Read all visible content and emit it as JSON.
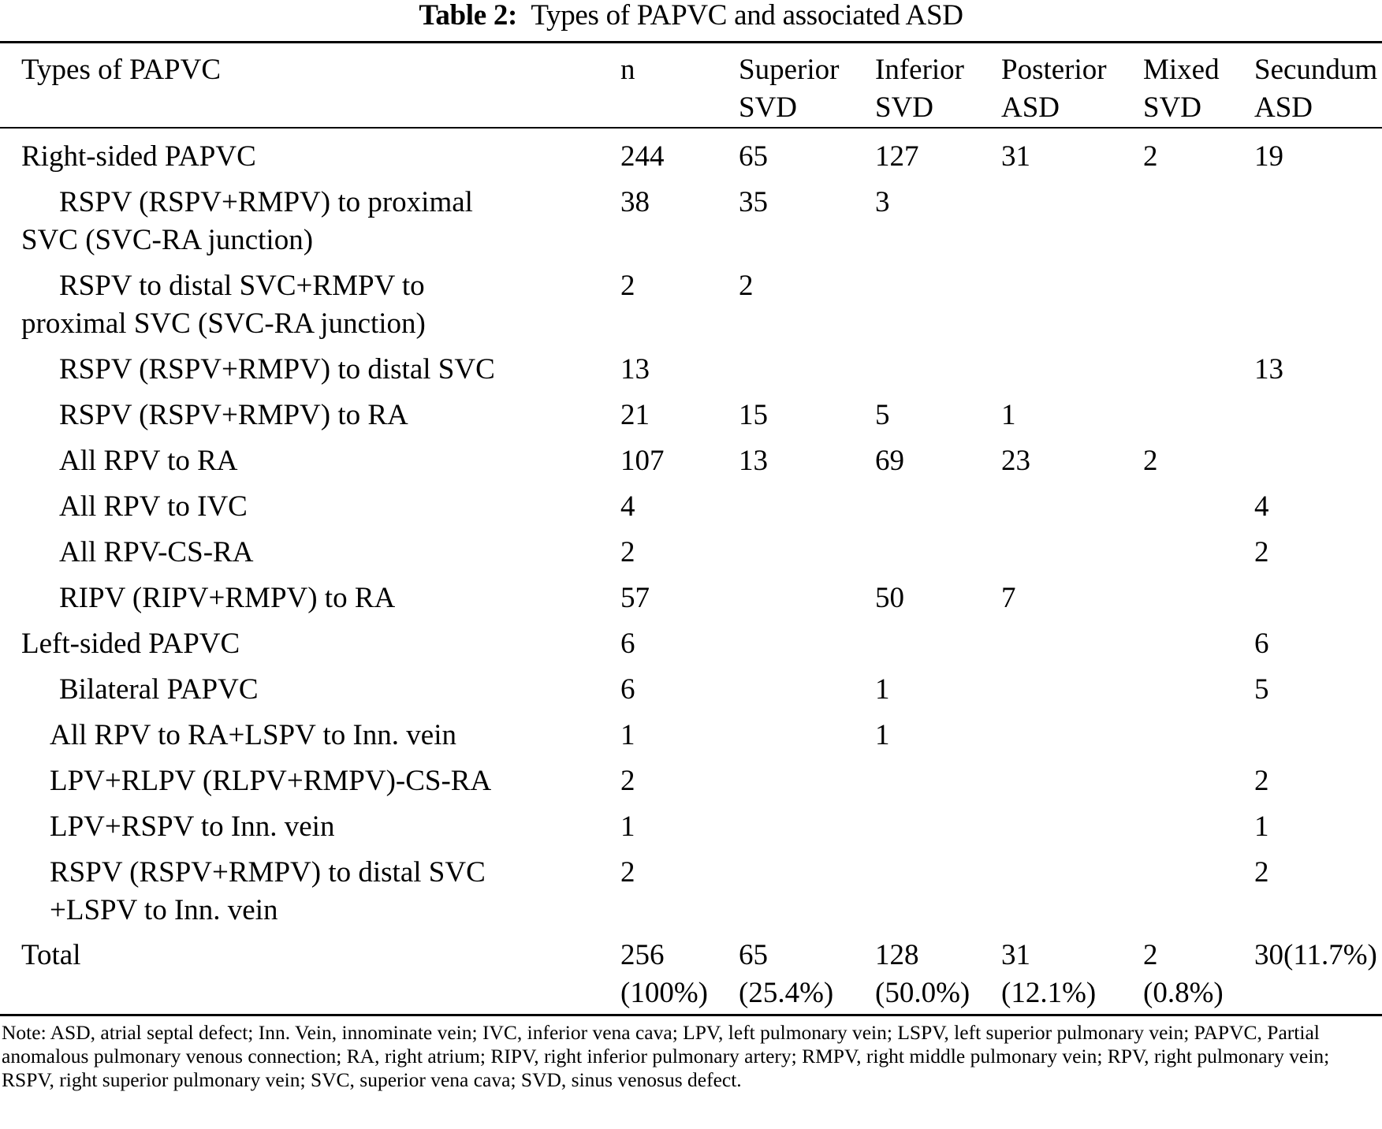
{
  "table": {
    "caption_label": "Table 2:",
    "caption_text": "Types of PAPVC and associated ASD",
    "headers": [
      [
        "Types of PAPVC",
        ""
      ],
      [
        "n",
        ""
      ],
      [
        "Superior",
        "SVD"
      ],
      [
        "Inferior",
        "SVD"
      ],
      [
        "Posterior",
        "ASD"
      ],
      [
        "Mixed",
        "SVD"
      ],
      [
        "Secundum",
        "ASD"
      ]
    ],
    "rows": [
      {
        "label": "Right-sided PAPVC",
        "style": "bold",
        "cells": [
          "244",
          "65",
          "127",
          "31",
          "2",
          "19"
        ]
      },
      {
        "label_line1": "RSPV (RSPV+RMPV) to proximal",
        "label_line2": "SVC (SVC-RA junction)",
        "style": "hang",
        "cells": [
          "38",
          "35",
          "3",
          "",
          "",
          ""
        ]
      },
      {
        "label_line1": "RSPV to distal SVC+RMPV to",
        "label_line2": "proximal SVC (SVC-RA junction)",
        "style": "hang",
        "cells": [
          "2",
          "2",
          "",
          "",
          "",
          ""
        ]
      },
      {
        "label": "RSPV (RSPV+RMPV) to distal SVC",
        "style": "ind1",
        "cells": [
          "13",
          "",
          "",
          "",
          "",
          "13"
        ]
      },
      {
        "label": "RSPV (RSPV+RMPV) to RA",
        "style": "ind1",
        "cells": [
          "21",
          "15",
          "5",
          "1",
          "",
          ""
        ]
      },
      {
        "label": "All RPV to RA",
        "style": "ind1",
        "cells": [
          "107",
          "13",
          "69",
          "23",
          "2",
          ""
        ]
      },
      {
        "label": "All RPV to IVC",
        "style": "ind1",
        "cells": [
          "4",
          "",
          "",
          "",
          "",
          "4"
        ]
      },
      {
        "label": "All RPV-CS-RA",
        "style": "ind1",
        "cells": [
          "2",
          "",
          "",
          "",
          "",
          "2"
        ]
      },
      {
        "label": "RIPV (RIPV+RMPV) to RA",
        "style": "ind1",
        "cells": [
          "57",
          "",
          "50",
          "7",
          "",
          ""
        ]
      },
      {
        "label": "Left-sided PAPVC",
        "style": "bold",
        "cells": [
          "6",
          "",
          "",
          "",
          "",
          "6"
        ]
      },
      {
        "label": "Bilateral PAPVC",
        "style": "bold-ind",
        "cells": [
          "6",
          "",
          "1",
          "",
          "",
          "5"
        ]
      },
      {
        "label": "All RPV to RA+LSPV to Inn. vein",
        "style": "ind2",
        "cells": [
          "1",
          "",
          "1",
          "",
          "",
          ""
        ]
      },
      {
        "label": "LPV+RLPV (RLPV+RMPV)-CS-RA",
        "style": "ind2",
        "cells": [
          "2",
          "",
          "",
          "",
          "",
          "2"
        ]
      },
      {
        "label": "LPV+RSPV to Inn. vein",
        "style": "ind2",
        "cells": [
          "1",
          "",
          "",
          "",
          "",
          "1"
        ]
      },
      {
        "label_line1": "RSPV (RSPV+RMPV) to distal SVC",
        "label_line2": "+LSPV to Inn. vein",
        "style": "ind2-2line",
        "cells": [
          "2",
          "",
          "",
          "",
          "",
          "2"
        ]
      }
    ],
    "total": {
      "label": "Total",
      "line1": [
        "256",
        "65",
        "128",
        "31",
        "2",
        "30(11.7%)"
      ],
      "line2": [
        "(100%)",
        "(25.4%)",
        "(50.0%)",
        "(12.1%)",
        "(0.8%)",
        ""
      ]
    },
    "note": "Note: ASD, atrial septal defect; Inn. Vein, innominate vein; IVC, inferior vena cava; LPV, left pulmonary vein; LSPV, left superior pulmonary vein; PAPVC, Partial anomalous pulmonary venous connection; RA, right atrium; RIPV, right inferior pulmonary artery; RMPV, right middle pulmonary vein; RPV, right pulmonary vein; RSPV, right superior pulmonary vein; SVC, superior vena cava; SVD, sinus venosus defect."
  }
}
